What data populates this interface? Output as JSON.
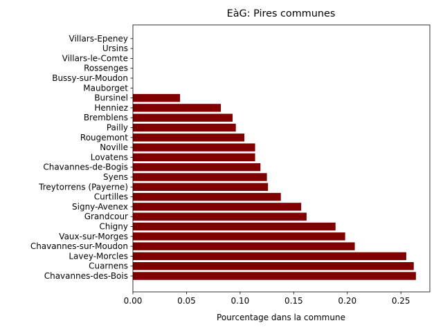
{
  "chart_data": {
    "type": "bar",
    "orientation": "horizontal",
    "title": "EàG: Pires communes",
    "xlabel": "Pourcentage dans la commune",
    "ylabel": "",
    "xlim": [
      0,
      0.277
    ],
    "xticks": [
      "0.00",
      "0.05",
      "0.10",
      "0.15",
      "0.20",
      "0.25"
    ],
    "bar_color": "#800000",
    "grid": false,
    "categories": [
      "Chavannes-des-Bois",
      "Cuarnens",
      "Lavey-Morcles",
      "Chavannes-sur-Moudon",
      "Vaux-sur-Morges",
      "Chigny",
      "Grandcour",
      "Signy-Avenex",
      "Curtilles",
      "Treytorrens (Payerne)",
      "Syens",
      "Chavannes-de-Bogis",
      "Lovatens",
      "Noville",
      "Rougemont",
      "Pailly",
      "Bremblens",
      "Henniez",
      "Bursinel",
      "Mauborget",
      "Bussy-sur-Moudon",
      "Rossenges",
      "Villars-le-Comte",
      "Ursins",
      "Villars-Epeney"
    ],
    "values": [
      0.264,
      0.262,
      0.255,
      0.207,
      0.198,
      0.189,
      0.162,
      0.157,
      0.138,
      0.126,
      0.125,
      0.119,
      0.114,
      0.114,
      0.104,
      0.096,
      0.093,
      0.082,
      0.044,
      0,
      0,
      0,
      0,
      0,
      0
    ]
  }
}
